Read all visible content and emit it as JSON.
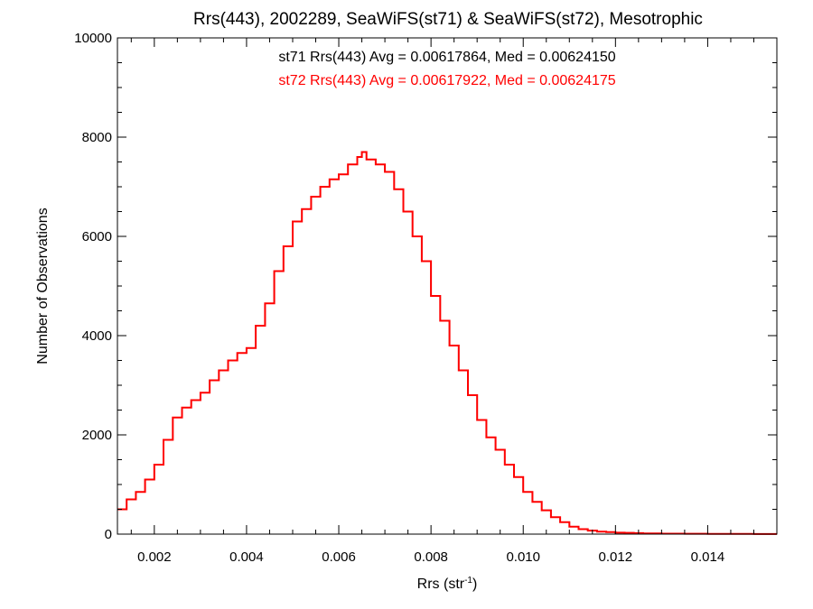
{
  "chart_data": {
    "type": "histogram",
    "title": "Rrs(443), 2002289, SeaWiFS(st71) & SeaWiFS(st72), Mesotrophic",
    "xlabel_base": "Rrs (str",
    "xlabel_sup": "-1",
    "xlabel_end": ")",
    "ylabel": "Number of Observations",
    "xlim": [
      0.0012,
      0.0155
    ],
    "ylim": [
      0,
      10000
    ],
    "x_ticks": [
      0.002,
      0.004,
      0.006,
      0.008,
      0.01,
      0.012,
      0.014
    ],
    "x_tick_labels": [
      "0.002",
      "0.004",
      "0.006",
      "0.008",
      "0.010",
      "0.012",
      "0.014"
    ],
    "y_ticks": [
      0,
      2000,
      4000,
      6000,
      8000,
      10000
    ],
    "y_tick_labels": [
      "0",
      "2000",
      "4000",
      "6000",
      "8000",
      "10000"
    ],
    "grid": false,
    "annotations": [
      {
        "text": "st71 Rrs(443) Avg = 0.00617864, Med = 0.00624150",
        "color": "#000000"
      },
      {
        "text": "st72 Rrs(443) Avg = 0.00617922, Med = 0.00624175",
        "color": "#ff0000"
      }
    ],
    "series": [
      {
        "color": "#000000",
        "x": [
          0.0012,
          0.0014,
          0.0016,
          0.0018,
          0.002,
          0.0022,
          0.0024,
          0.0026,
          0.0028,
          0.003,
          0.0032,
          0.0034,
          0.0036,
          0.0038,
          0.004,
          0.0042,
          0.0044,
          0.0046,
          0.0048,
          0.005,
          0.0052,
          0.0054,
          0.0056,
          0.0058,
          0.006,
          0.0062,
          0.0064,
          0.0065,
          0.0066,
          0.0068,
          0.007,
          0.0072,
          0.0074,
          0.0076,
          0.0078,
          0.008,
          0.0082,
          0.0084,
          0.0086,
          0.0088,
          0.009,
          0.0092,
          0.0094,
          0.0096,
          0.0098,
          0.01,
          0.0102,
          0.0104,
          0.0106,
          0.0108,
          0.011,
          0.0112,
          0.0114,
          0.0116,
          0.0118,
          0.012,
          0.0122,
          0.0124,
          0.0126,
          0.0128,
          0.013,
          0.0135,
          0.014,
          0.0145,
          0.015,
          0.0155
        ],
        "y": [
          500,
          700,
          850,
          1100,
          1400,
          1900,
          2350,
          2550,
          2700,
          2850,
          3100,
          3300,
          3500,
          3650,
          3750,
          4200,
          4650,
          5300,
          5800,
          6300,
          6550,
          6800,
          7000,
          7150,
          7250,
          7450,
          7600,
          7700,
          7550,
          7450,
          7300,
          6950,
          6500,
          6000,
          5500,
          4800,
          4300,
          3800,
          3300,
          2800,
          2300,
          1950,
          1700,
          1400,
          1150,
          850,
          650,
          480,
          340,
          240,
          150,
          100,
          70,
          50,
          40,
          30,
          25,
          20,
          15,
          12,
          10,
          8,
          6,
          4,
          2,
          2
        ]
      },
      {
        "color": "#ff0000",
        "x": [
          0.0012,
          0.0014,
          0.0016,
          0.0018,
          0.002,
          0.0022,
          0.0024,
          0.0026,
          0.0028,
          0.003,
          0.0032,
          0.0034,
          0.0036,
          0.0038,
          0.004,
          0.0042,
          0.0044,
          0.0046,
          0.0048,
          0.005,
          0.0052,
          0.0054,
          0.0056,
          0.0058,
          0.006,
          0.0062,
          0.0064,
          0.0065,
          0.0066,
          0.0068,
          0.007,
          0.0072,
          0.0074,
          0.0076,
          0.0078,
          0.008,
          0.0082,
          0.0084,
          0.0086,
          0.0088,
          0.009,
          0.0092,
          0.0094,
          0.0096,
          0.0098,
          0.01,
          0.0102,
          0.0104,
          0.0106,
          0.0108,
          0.011,
          0.0112,
          0.0114,
          0.0116,
          0.0118,
          0.012,
          0.0122,
          0.0124,
          0.0126,
          0.0128,
          0.013,
          0.0135,
          0.014,
          0.0145,
          0.015,
          0.0155
        ],
        "y": [
          500,
          700,
          850,
          1100,
          1400,
          1900,
          2350,
          2550,
          2700,
          2850,
          3100,
          3300,
          3500,
          3650,
          3750,
          4200,
          4650,
          5300,
          5800,
          6300,
          6550,
          6800,
          7000,
          7150,
          7250,
          7450,
          7600,
          7700,
          7550,
          7450,
          7300,
          6950,
          6500,
          6000,
          5500,
          4800,
          4300,
          3800,
          3300,
          2800,
          2300,
          1950,
          1700,
          1400,
          1150,
          850,
          650,
          480,
          340,
          240,
          150,
          100,
          70,
          50,
          40,
          30,
          25,
          20,
          15,
          12,
          10,
          8,
          6,
          4,
          2,
          2
        ]
      }
    ]
  }
}
